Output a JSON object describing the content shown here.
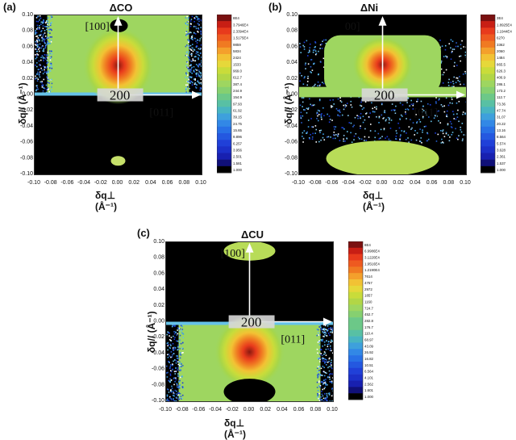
{
  "chart_data": [
    {
      "type": "heatmap",
      "panel": "(a)",
      "title": "ΔCO",
      "xlabel": "δq⊥ (Å⁻¹)",
      "ylabel": "δq// (Å⁻¹)",
      "xlim": [
        -0.1,
        0.1
      ],
      "ylim": [
        -0.1,
        0.1
      ],
      "x_ticks": [
        "-0.10",
        "-0.08",
        "-0.06",
        "-0.04",
        "-0.02",
        "0.00",
        "0.02",
        "0.04",
        "0.06",
        "0.08",
        "0.10"
      ],
      "y_ticks": [
        "0.10",
        "0.08",
        "0.06",
        "0.04",
        "0.02",
        "0.00",
        "-0.02",
        "-0.04",
        "-0.06",
        "-0.08",
        "-0.10"
      ],
      "colorbar": [
        "8E4",
        "3.7946E4",
        "2.3394E4",
        "1.5175E4",
        "9859",
        "5834",
        "2424",
        "1533",
        "969.0",
        "612.7",
        "387.4",
        "244.9",
        "154.9",
        "97.93",
        "61.92",
        "39.15",
        "24.75",
        "15.65",
        "9.896",
        "6.257",
        "3.956",
        "2.501",
        "1.581",
        "1.000"
      ],
      "annotations": {
        "up": "[100]",
        "center": "200",
        "right": "[011]"
      }
    },
    {
      "type": "heatmap",
      "panel": "(b)",
      "title": "ΔNi",
      "xlabel": "δq⊥ (Å⁻¹)",
      "ylabel": "δq// (Å⁻¹)",
      "xlim": [
        -0.1,
        0.1
      ],
      "ylim": [
        -0.1,
        0.1
      ],
      "x_ticks": [
        "-0.10",
        "-0.08",
        "-0.06",
        "-0.04",
        "-0.02",
        "0.00",
        "0.02",
        "0.04",
        "0.06",
        "0.08",
        "0.10"
      ],
      "y_ticks": [
        "0.10",
        "0.08",
        "0.06",
        "0.04",
        "0.02",
        "0.00",
        "-0.02",
        "-0.04",
        "-0.06",
        "-0.08",
        "-0.10"
      ],
      "colorbar": [
        "3E4",
        "1.8925E4",
        "1.1944E4",
        "6270",
        "3362",
        "2060",
        "1484",
        "865.5",
        "626.3",
        "406.9",
        "286.1",
        "173.2",
        "112.7",
        "73.36",
        "47.74",
        "31.07",
        "20.22",
        "13.16",
        "8.564",
        "5.574",
        "3.628",
        "2.361",
        "1.537",
        "1.000"
      ],
      "annotations": {
        "up": "00]",
        "center": "200",
        "right": "[011]"
      }
    },
    {
      "type": "heatmap",
      "panel": "(c)",
      "title": "ΔCU",
      "xlabel": "δq⊥ (Å⁻¹)",
      "ylabel": "δq// (Å⁻¹)",
      "xlim": [
        -0.1,
        0.1
      ],
      "ylim": [
        -0.1,
        0.1
      ],
      "x_ticks": [
        "-0.10",
        "-0.08",
        "-0.06",
        "-0.04",
        "-0.02",
        "0.00",
        "0.02",
        "0.04",
        "0.06",
        "0.08",
        "0.10"
      ],
      "y_ticks": [
        "0.10",
        "0.08",
        "0.06",
        "0.04",
        "0.02",
        "0.00",
        "-0.02",
        "-0.04",
        "-0.06",
        "-0.08",
        "-0.10"
      ],
      "colorbar": [
        "8E4",
        "6.9986E4",
        "3.1220E4",
        "1.9516E4",
        "1.2190E4",
        "7614",
        "4757",
        "2972",
        "1857",
        "1160",
        "724.7",
        "452.7",
        "282.8",
        "176.7",
        "110.4",
        "68.97",
        "43.09",
        "26.92",
        "16.82",
        "10.51",
        "6.564",
        "4.101",
        "2.562",
        "1.601",
        "1.000"
      ],
      "annotations": {
        "up": "[100]",
        "center": "200",
        "right": "[011]"
      }
    }
  ]
}
